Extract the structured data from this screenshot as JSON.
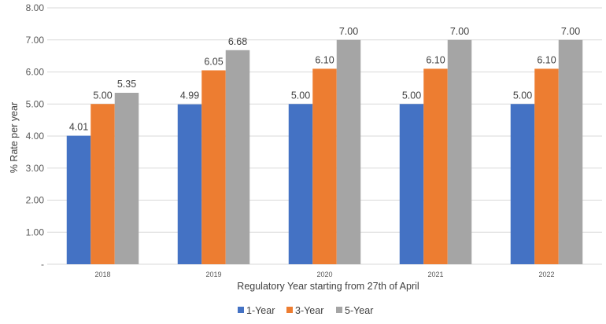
{
  "chart_data": {
    "type": "bar",
    "categories": [
      "2018",
      "2019",
      "2020",
      "2021",
      "2022"
    ],
    "series": [
      {
        "name": "1-Year",
        "color": "#4472C4",
        "values": [
          4.01,
          4.99,
          5.0,
          5.0,
          5.0
        ],
        "labels": [
          "4.01",
          "4.99",
          "5.00",
          "5.00",
          "5.00"
        ]
      },
      {
        "name": "3-Year",
        "color": "#ED7D31",
        "values": [
          5.0,
          6.05,
          6.1,
          6.1,
          6.1
        ],
        "labels": [
          "5.00",
          "6.05",
          "6.10",
          "6.10",
          "6.10"
        ]
      },
      {
        "name": "5-Year",
        "color": "#A5A5A5",
        "values": [
          5.35,
          6.68,
          7.0,
          7.0,
          7.0
        ],
        "labels": [
          "5.35",
          "6.68",
          "7.00",
          "7.00",
          "7.00"
        ]
      }
    ],
    "yticks": [
      "-",
      "1.00",
      "2.00",
      "3.00",
      "4.00",
      "5.00",
      "6.00",
      "7.00",
      "8.00"
    ],
    "ylim": [
      0,
      8
    ],
    "xlabel": "Regulatory Year starting from 27th of April",
    "ylabel": "% Rate per year",
    "grid": true,
    "legend_position": "bottom"
  }
}
